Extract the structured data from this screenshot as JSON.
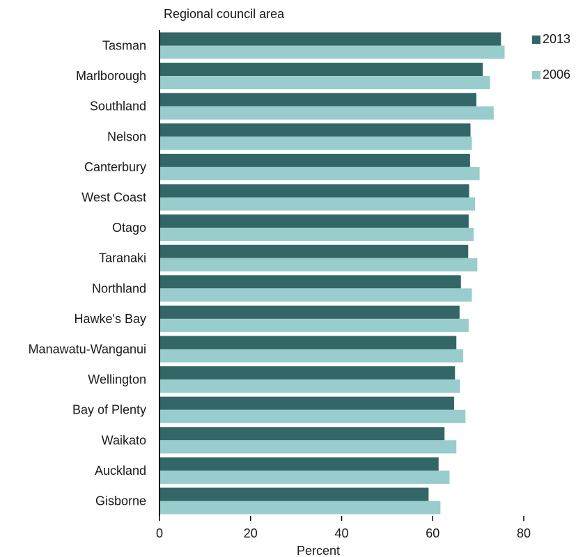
{
  "chart_data": {
    "type": "bar",
    "orientation": "horizontal",
    "ylabel": "Regional council area",
    "xlabel": "Percent",
    "xlim": [
      0,
      80
    ],
    "xticks": [
      0,
      20,
      40,
      60,
      80
    ],
    "grid": false,
    "legend_position": "right",
    "categories": [
      "Tasman",
      "Marlborough",
      "Southland",
      "Nelson",
      "Canterbury",
      "West Coast",
      "Otago",
      "Taranaki",
      "Northland",
      "Hawke's Bay",
      "Manawatu-Wanganui",
      "Wellington",
      "Bay of Plenty",
      "Waikato",
      "Auckland",
      "Gisborne"
    ],
    "series": [
      {
        "name": "2013",
        "color": "#336666",
        "values": [
          75.0,
          71.0,
          69.6,
          68.3,
          68.2,
          68.0,
          67.9,
          67.8,
          66.2,
          65.9,
          65.2,
          64.9,
          64.7,
          62.6,
          61.3,
          59.1
        ]
      },
      {
        "name": "2006",
        "color": "#99CCCC",
        "values": [
          75.8,
          72.6,
          73.4,
          68.6,
          70.3,
          69.3,
          69.0,
          69.8,
          68.6,
          67.9,
          66.7,
          66.0,
          67.2,
          65.2,
          63.7,
          61.7
        ]
      }
    ]
  }
}
